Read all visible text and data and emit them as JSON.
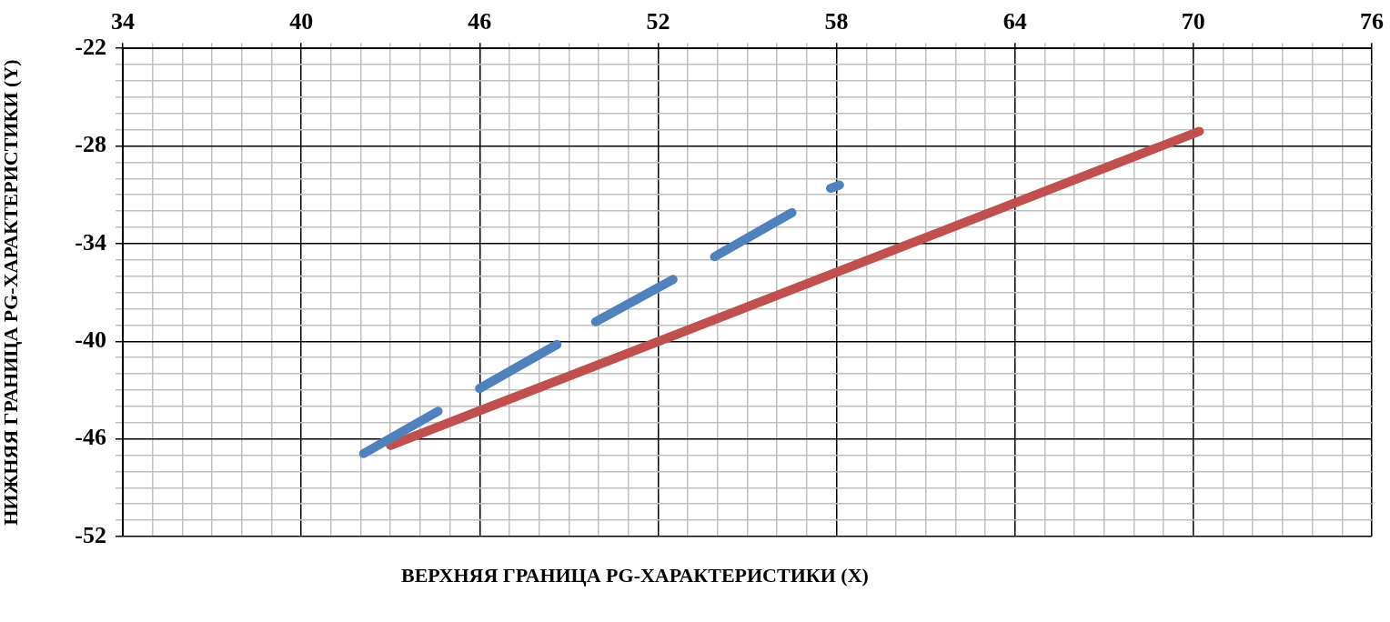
{
  "chart_data": {
    "type": "line",
    "xlabel": "ВЕРХНЯЯ ГРАНИЦА PG-ХАРАКТЕРИСТИКИ (X)",
    "ylabel": "НИЖНЯЯ ГРАНИЦА PG-ХАРАКТЕРИСТИКИ (Y)",
    "xlim": [
      34,
      76
    ],
    "ylim": [
      -52,
      -22
    ],
    "xticks": [
      34,
      {
        "value": 35,
        "label": null
      },
      {
        "value": 36,
        "label": null
      },
      {
        "value": 37,
        "label": null
      },
      {
        "value": 38,
        "label": null
      },
      {
        "value": 39,
        "label": null
      },
      40,
      {
        "value": 41,
        "label": null
      },
      {
        "value": 42,
        "label": null
      },
      {
        "value": 43,
        "label": null
      },
      {
        "value": 44,
        "label": null
      },
      {
        "value": 45,
        "label": null
      },
      46,
      {
        "value": 47,
        "label": null
      },
      {
        "value": 48,
        "label": null
      },
      {
        "value": 49,
        "label": null
      },
      {
        "value": 50,
        "label": null
      },
      {
        "value": 51,
        "label": null
      },
      52,
      {
        "value": 53,
        "label": null
      },
      {
        "value": 54,
        "label": null
      },
      {
        "value": 55,
        "label": null
      },
      {
        "value": 56,
        "label": null
      },
      {
        "value": 57,
        "label": null
      },
      58,
      {
        "value": 59,
        "label": null
      },
      {
        "value": 60,
        "label": null
      },
      {
        "value": 61,
        "label": null
      },
      {
        "value": 62,
        "label": null
      },
      {
        "value": 63,
        "label": null
      },
      64,
      {
        "value": 65,
        "label": null
      },
      {
        "value": 66,
        "label": null
      },
      {
        "value": 67,
        "label": null
      },
      {
        "value": 68,
        "label": null
      },
      {
        "value": 69,
        "label": null
      },
      70,
      {
        "value": 71,
        "label": null
      },
      {
        "value": 72,
        "label": null
      },
      {
        "value": 73,
        "label": null
      },
      {
        "value": 74,
        "label": null
      },
      {
        "value": 75,
        "label": null
      },
      76
    ],
    "yticks": [
      -52,
      {
        "value": -51,
        "label": null
      },
      {
        "value": -50,
        "label": null
      },
      {
        "value": -49,
        "label": null
      },
      {
        "value": -48,
        "label": null
      },
      {
        "value": -47,
        "label": null
      },
      -46,
      {
        "value": -45,
        "label": null
      },
      {
        "value": -44,
        "label": null
      },
      {
        "value": -43,
        "label": null
      },
      {
        "value": -42,
        "label": null
      },
      {
        "value": -41,
        "label": null
      },
      -40,
      {
        "value": -39,
        "label": null
      },
      {
        "value": -38,
        "label": null
      },
      {
        "value": -37,
        "label": null
      },
      {
        "value": -36,
        "label": null
      },
      {
        "value": -35,
        "label": null
      },
      -34,
      {
        "value": -33,
        "label": null
      },
      {
        "value": -32,
        "label": null
      },
      {
        "value": -31,
        "label": null
      },
      {
        "value": -30,
        "label": null
      },
      {
        "value": -29,
        "label": null
      },
      -28,
      {
        "value": -27,
        "label": null
      },
      {
        "value": -26,
        "label": null
      },
      {
        "value": -25,
        "label": null
      },
      {
        "value": -24,
        "label": null
      },
      {
        "value": -23,
        "label": null
      },
      -22
    ],
    "grid": true,
    "legend": false,
    "marker": "none",
    "line_style": "solid",
    "series": [
      {
        "color": "#4f81bd",
        "x": [
          42.1,
          44.6,
          45.3,
          46,
          48.6,
          49.2,
          49.9,
          52.5,
          53.2,
          53.9,
          56.5,
          57.2,
          57.8,
          58.1
        ],
        "values": [
          -46.9,
          -44.3,
          null,
          -42.9,
          -40.2,
          null,
          -38.8,
          -36.2,
          null,
          -34.8,
          -32.1,
          null,
          -30.6,
          -30.4
        ]
      },
      {
        "color": "#c0504d",
        "x": [
          43,
          70.2
        ],
        "values": [
          -46.4,
          -27.1
        ]
      }
    ]
  }
}
